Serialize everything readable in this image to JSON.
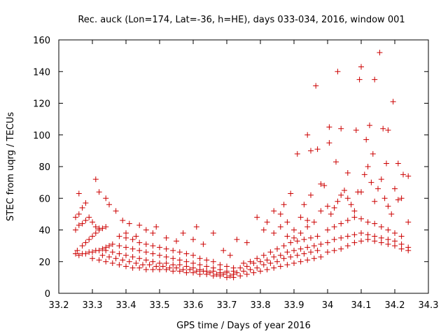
{
  "chart_data": {
    "type": "scatter",
    "title": "Rec. auck (Lon=174, Lat=-36, h=HE), days 033-034, 2016, window 001",
    "xlabel": "GPS time / Days of year 2016",
    "ylabel": "STEC from uqrg / TECUs",
    "xlim": [
      33.2,
      34.3
    ],
    "ylim": [
      0,
      160
    ],
    "xticks": [
      "33.2",
      "33.3",
      "33.4",
      "33.5",
      "33.6",
      "33.7",
      "33.8",
      "33.9",
      "34",
      "34.1",
      "34.2",
      "34.3"
    ],
    "yticks": [
      "0",
      "20",
      "40",
      "60",
      "80",
      "100",
      "120",
      "140",
      "160"
    ],
    "grid": false,
    "marker": "plus",
    "series": [
      {
        "name": "STEC",
        "color": "#cc0000",
        "points": [
          [
            33.25,
            25
          ],
          [
            33.255,
            27
          ],
          [
            33.26,
            24
          ],
          [
            33.27,
            25
          ],
          [
            33.28,
            25
          ],
          [
            33.29,
            26
          ],
          [
            33.3,
            26
          ],
          [
            33.31,
            27
          ],
          [
            33.32,
            27
          ],
          [
            33.33,
            28
          ],
          [
            33.34,
            29
          ],
          [
            33.35,
            30
          ],
          [
            33.25,
            40
          ],
          [
            33.26,
            43
          ],
          [
            33.27,
            44
          ],
          [
            33.28,
            46
          ],
          [
            33.29,
            48
          ],
          [
            33.3,
            45
          ],
          [
            33.31,
            42
          ],
          [
            33.32,
            41
          ],
          [
            33.25,
            48
          ],
          [
            33.26,
            50
          ],
          [
            33.27,
            54
          ],
          [
            33.28,
            57
          ],
          [
            33.26,
            63
          ],
          [
            33.31,
            72
          ],
          [
            33.32,
            64
          ],
          [
            33.34,
            60
          ],
          [
            33.35,
            56
          ],
          [
            33.37,
            52
          ],
          [
            33.39,
            46
          ],
          [
            33.41,
            44
          ],
          [
            33.44,
            43
          ],
          [
            33.27,
            30
          ],
          [
            33.28,
            32
          ],
          [
            33.29,
            34
          ],
          [
            33.3,
            36
          ],
          [
            33.31,
            38
          ],
          [
            33.32,
            40
          ],
          [
            33.33,
            41
          ],
          [
            33.34,
            42
          ],
          [
            33.3,
            22
          ],
          [
            33.32,
            21
          ],
          [
            33.34,
            20
          ],
          [
            33.36,
            19
          ],
          [
            33.38,
            18
          ],
          [
            33.4,
            17
          ],
          [
            33.42,
            16
          ],
          [
            33.44,
            16
          ],
          [
            33.46,
            15
          ],
          [
            33.48,
            15
          ],
          [
            33.5,
            15
          ],
          [
            33.52,
            15
          ],
          [
            33.54,
            14
          ],
          [
            33.56,
            14
          ],
          [
            33.58,
            13
          ],
          [
            33.6,
            13
          ],
          [
            33.62,
            12
          ],
          [
            33.64,
            12
          ],
          [
            33.66,
            11
          ],
          [
            33.68,
            11
          ],
          [
            33.7,
            10
          ],
          [
            33.33,
            24
          ],
          [
            33.35,
            23
          ],
          [
            33.37,
            22
          ],
          [
            33.39,
            21
          ],
          [
            33.41,
            20
          ],
          [
            33.43,
            19
          ],
          [
            33.45,
            18
          ],
          [
            33.47,
            18
          ],
          [
            33.49,
            17
          ],
          [
            33.51,
            17
          ],
          [
            33.53,
            16
          ],
          [
            33.55,
            16
          ],
          [
            33.57,
            15
          ],
          [
            33.59,
            15
          ],
          [
            33.61,
            14
          ],
          [
            33.63,
            14
          ],
          [
            33.65,
            13
          ],
          [
            33.67,
            12
          ],
          [
            33.69,
            12
          ],
          [
            33.71,
            11
          ],
          [
            33.34,
            27
          ],
          [
            33.36,
            26
          ],
          [
            33.38,
            25
          ],
          [
            33.4,
            24
          ],
          [
            33.42,
            23
          ],
          [
            33.44,
            22
          ],
          [
            33.46,
            21
          ],
          [
            33.48,
            20
          ],
          [
            33.5,
            19
          ],
          [
            33.52,
            19
          ],
          [
            33.54,
            18
          ],
          [
            33.56,
            18
          ],
          [
            33.58,
            17
          ],
          [
            33.6,
            16
          ],
          [
            33.62,
            15
          ],
          [
            33.64,
            14
          ],
          [
            33.66,
            14
          ],
          [
            33.68,
            13
          ],
          [
            33.7,
            13
          ],
          [
            33.72,
            12
          ],
          [
            33.36,
            31
          ],
          [
            33.38,
            30
          ],
          [
            33.4,
            29
          ],
          [
            33.42,
            28
          ],
          [
            33.44,
            27
          ],
          [
            33.46,
            26
          ],
          [
            33.48,
            25
          ],
          [
            33.5,
            24
          ],
          [
            33.52,
            23
          ],
          [
            33.54,
            22
          ],
          [
            33.56,
            21
          ],
          [
            33.58,
            20
          ],
          [
            33.6,
            19
          ],
          [
            33.62,
            18
          ],
          [
            33.64,
            17
          ],
          [
            33.66,
            16
          ],
          [
            33.68,
            15
          ],
          [
            33.7,
            14
          ],
          [
            33.72,
            14
          ],
          [
            33.38,
            36
          ],
          [
            33.4,
            35
          ],
          [
            33.42,
            34
          ],
          [
            33.44,
            32
          ],
          [
            33.46,
            31
          ],
          [
            33.48,
            30
          ],
          [
            33.5,
            29
          ],
          [
            33.52,
            28
          ],
          [
            33.54,
            27
          ],
          [
            33.56,
            26
          ],
          [
            33.58,
            25
          ],
          [
            33.6,
            24
          ],
          [
            33.62,
            22
          ],
          [
            33.64,
            21
          ],
          [
            33.66,
            20
          ],
          [
            33.68,
            18
          ],
          [
            33.7,
            17
          ],
          [
            33.72,
            16
          ],
          [
            33.4,
            38
          ],
          [
            33.43,
            36
          ],
          [
            33.46,
            40
          ],
          [
            33.48,
            38
          ],
          [
            33.49,
            42
          ],
          [
            33.52,
            35
          ],
          [
            33.55,
            33
          ],
          [
            33.57,
            38
          ],
          [
            33.6,
            34
          ],
          [
            33.61,
            42
          ],
          [
            33.63,
            31
          ],
          [
            33.66,
            38
          ],
          [
            33.69,
            27
          ],
          [
            33.71,
            24
          ],
          [
            33.72,
            10
          ],
          [
            33.74,
            11
          ],
          [
            33.76,
            12
          ],
          [
            33.78,
            13
          ],
          [
            33.8,
            14
          ],
          [
            33.82,
            15
          ],
          [
            33.84,
            16
          ],
          [
            33.86,
            17
          ],
          [
            33.88,
            18
          ],
          [
            33.9,
            19
          ],
          [
            33.92,
            20
          ],
          [
            33.94,
            21
          ],
          [
            33.96,
            22
          ],
          [
            33.98,
            23
          ],
          [
            33.73,
            13
          ],
          [
            33.75,
            14
          ],
          [
            33.77,
            15
          ],
          [
            33.79,
            16
          ],
          [
            33.81,
            18
          ],
          [
            33.83,
            19
          ],
          [
            33.85,
            20
          ],
          [
            33.87,
            22
          ],
          [
            33.89,
            23
          ],
          [
            33.91,
            24
          ],
          [
            33.93,
            25
          ],
          [
            33.95,
            26
          ],
          [
            33.97,
            27
          ],
          [
            33.74,
            16
          ],
          [
            33.76,
            17
          ],
          [
            33.78,
            19
          ],
          [
            33.8,
            20
          ],
          [
            33.82,
            21
          ],
          [
            33.84,
            23
          ],
          [
            33.86,
            24
          ],
          [
            33.88,
            26
          ],
          [
            33.9,
            27
          ],
          [
            33.92,
            28
          ],
          [
            33.94,
            29
          ],
          [
            33.96,
            30
          ],
          [
            33.98,
            31
          ],
          [
            33.75,
            19
          ],
          [
            33.77,
            20
          ],
          [
            33.79,
            22
          ],
          [
            33.81,
            24
          ],
          [
            33.83,
            26
          ],
          [
            33.85,
            28
          ],
          [
            33.87,
            30
          ],
          [
            33.89,
            32
          ],
          [
            33.91,
            33
          ],
          [
            33.93,
            34
          ],
          [
            33.95,
            35
          ],
          [
            33.97,
            36
          ],
          [
            33.73,
            34
          ],
          [
            33.76,
            32
          ],
          [
            33.79,
            48
          ],
          [
            33.81,
            40
          ],
          [
            33.82,
            45
          ],
          [
            33.84,
            52
          ],
          [
            33.86,
            50
          ],
          [
            33.87,
            56
          ],
          [
            33.88,
            45
          ],
          [
            33.89,
            63
          ],
          [
            33.9,
            40
          ],
          [
            33.91,
            88
          ],
          [
            33.92,
            48
          ],
          [
            33.94,
            46
          ],
          [
            33.95,
            90
          ],
          [
            33.97,
            91
          ],
          [
            33.98,
            69
          ],
          [
            33.99,
            68
          ],
          [
            33.84,
            38
          ],
          [
            33.86,
            42
          ],
          [
            33.88,
            36
          ],
          [
            33.9,
            35
          ],
          [
            33.92,
            38
          ],
          [
            33.94,
            42
          ],
          [
            33.96,
            45
          ],
          [
            33.98,
            52
          ],
          [
            33.94,
            100
          ],
          [
            33.965,
            131
          ],
          [
            33.93,
            56
          ],
          [
            33.95,
            62
          ],
          [
            34.0,
            26
          ],
          [
            34.02,
            27
          ],
          [
            34.04,
            28
          ],
          [
            34.06,
            30
          ],
          [
            34.08,
            32
          ],
          [
            34.1,
            33
          ],
          [
            34.12,
            34
          ],
          [
            34.14,
            33
          ],
          [
            34.16,
            32
          ],
          [
            34.18,
            31
          ],
          [
            34.2,
            30
          ],
          [
            34.22,
            28
          ],
          [
            34.24,
            27
          ],
          [
            34.0,
            32
          ],
          [
            34.02,
            34
          ],
          [
            34.04,
            35
          ],
          [
            34.06,
            36
          ],
          [
            34.08,
            37
          ],
          [
            34.1,
            38
          ],
          [
            34.12,
            37
          ],
          [
            34.14,
            36
          ],
          [
            34.16,
            35
          ],
          [
            34.18,
            34
          ],
          [
            34.2,
            33
          ],
          [
            34.22,
            31
          ],
          [
            34.24,
            29
          ],
          [
            34.0,
            40
          ],
          [
            34.02,
            42
          ],
          [
            34.04,
            44
          ],
          [
            34.06,
            46
          ],
          [
            34.08,
            48
          ],
          [
            34.1,
            47
          ],
          [
            34.12,
            45
          ],
          [
            34.14,
            44
          ],
          [
            34.16,
            42
          ],
          [
            34.18,
            40
          ],
          [
            34.2,
            38
          ],
          [
            34.22,
            36
          ],
          [
            34.24,
            45
          ],
          [
            34.0,
            55
          ],
          [
            34.01,
            50
          ],
          [
            34.02,
            54
          ],
          [
            34.03,
            58
          ],
          [
            34.04,
            62
          ],
          [
            34.05,
            65
          ],
          [
            34.06,
            60
          ],
          [
            34.07,
            56
          ],
          [
            34.08,
            52
          ],
          [
            34.09,
            64
          ],
          [
            34.1,
            64
          ],
          [
            34.11,
            75
          ],
          [
            34.12,
            80
          ],
          [
            34.13,
            70
          ],
          [
            34.14,
            58
          ],
          [
            34.15,
            66
          ],
          [
            34.16,
            72
          ],
          [
            34.17,
            60
          ],
          [
            34.18,
            55
          ],
          [
            34.19,
            50
          ],
          [
            34.2,
            66
          ],
          [
            34.21,
            59
          ],
          [
            34.22,
            60
          ],
          [
            34.005,
            95
          ],
          [
            34.025,
            83
          ],
          [
            34.04,
            104
          ],
          [
            34.06,
            76
          ],
          [
            34.085,
            103
          ],
          [
            34.095,
            135
          ],
          [
            34.1,
            143
          ],
          [
            34.115,
            97
          ],
          [
            34.125,
            106
          ],
          [
            34.135,
            88
          ],
          [
            34.14,
            135
          ],
          [
            34.155,
            152
          ],
          [
            34.165,
            104
          ],
          [
            34.175,
            82
          ],
          [
            34.18,
            103
          ],
          [
            34.195,
            121
          ],
          [
            34.21,
            82
          ],
          [
            34.225,
            75
          ],
          [
            34.24,
            74
          ],
          [
            34.03,
            140
          ],
          [
            34.005,
            105
          ]
        ]
      }
    ]
  }
}
